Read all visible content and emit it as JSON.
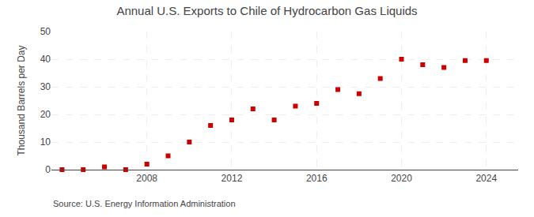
{
  "chart_data": {
    "type": "scatter",
    "title": "Annual U.S. Exports to Chile of Hydrocarbon Gas Liquids",
    "ylabel": "Thousand Barrels per Day",
    "annotations": [
      "Source: U.S. Energy Information Administration"
    ],
    "x": [
      2004,
      2005,
      2006,
      2007,
      2008,
      2009,
      2010,
      2011,
      2012,
      2013,
      2014,
      2015,
      2016,
      2017,
      2018,
      2019,
      2020,
      2021,
      2022,
      2023,
      2024
    ],
    "values": [
      0.0,
      0.0,
      1.0,
      0.0,
      2.0,
      5.0,
      10.0,
      16.0,
      18.0,
      22.0,
      18.0,
      23.0,
      24.0,
      29.0,
      27.5,
      33.0,
      40.0,
      38.0,
      37.0,
      39.5,
      39.5
    ],
    "color": "#cc0000",
    "marker": "square",
    "xlim": [
      2003.5,
      2025.5
    ],
    "xticks": [
      2008,
      2012,
      2016,
      2020,
      2024
    ],
    "ylim": [
      0,
      50
    ],
    "yticks": [
      0,
      10,
      20,
      30,
      40,
      50
    ],
    "grid": true
  }
}
